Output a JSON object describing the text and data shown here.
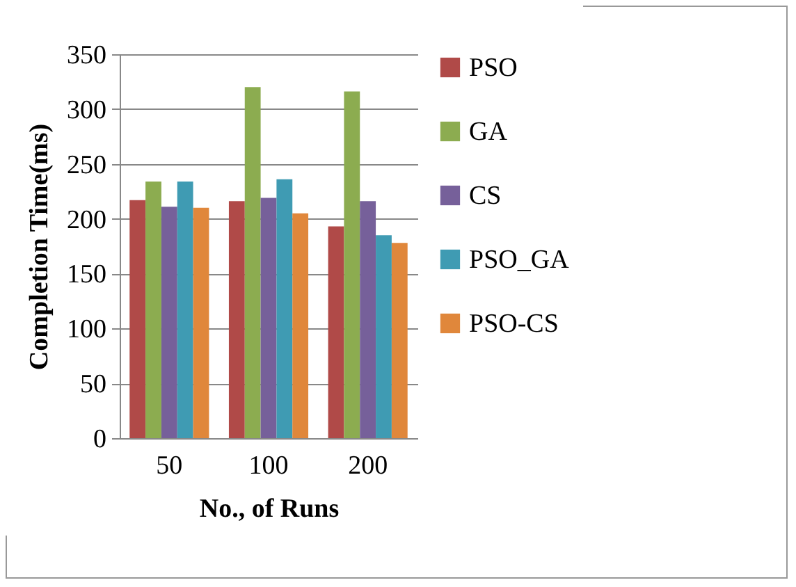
{
  "chart_data": {
    "type": "bar",
    "xlabel": "No., of Runs",
    "ylabel": "Completion Time(ms)",
    "categories": [
      "50",
      "100",
      "200"
    ],
    "series": [
      {
        "name": "PSO",
        "color": "#b04a48",
        "values": [
          217,
          216,
          193
        ]
      },
      {
        "name": "GA",
        "color": "#8cac50",
        "values": [
          234,
          320,
          316
        ]
      },
      {
        "name": "CS",
        "color": "#76609a",
        "values": [
          211,
          219,
          216
        ]
      },
      {
        "name": "PSO_GA",
        "color": "#3f9bb3",
        "values": [
          234,
          236,
          185
        ]
      },
      {
        "name": "PSO-CS",
        "color": "#e0873b",
        "values": [
          210,
          205,
          178
        ]
      }
    ],
    "ylim": [
      0,
      350
    ],
    "yticks": [
      0,
      50,
      100,
      150,
      200,
      250,
      300,
      350
    ],
    "grid": "y",
    "legend": "right"
  }
}
